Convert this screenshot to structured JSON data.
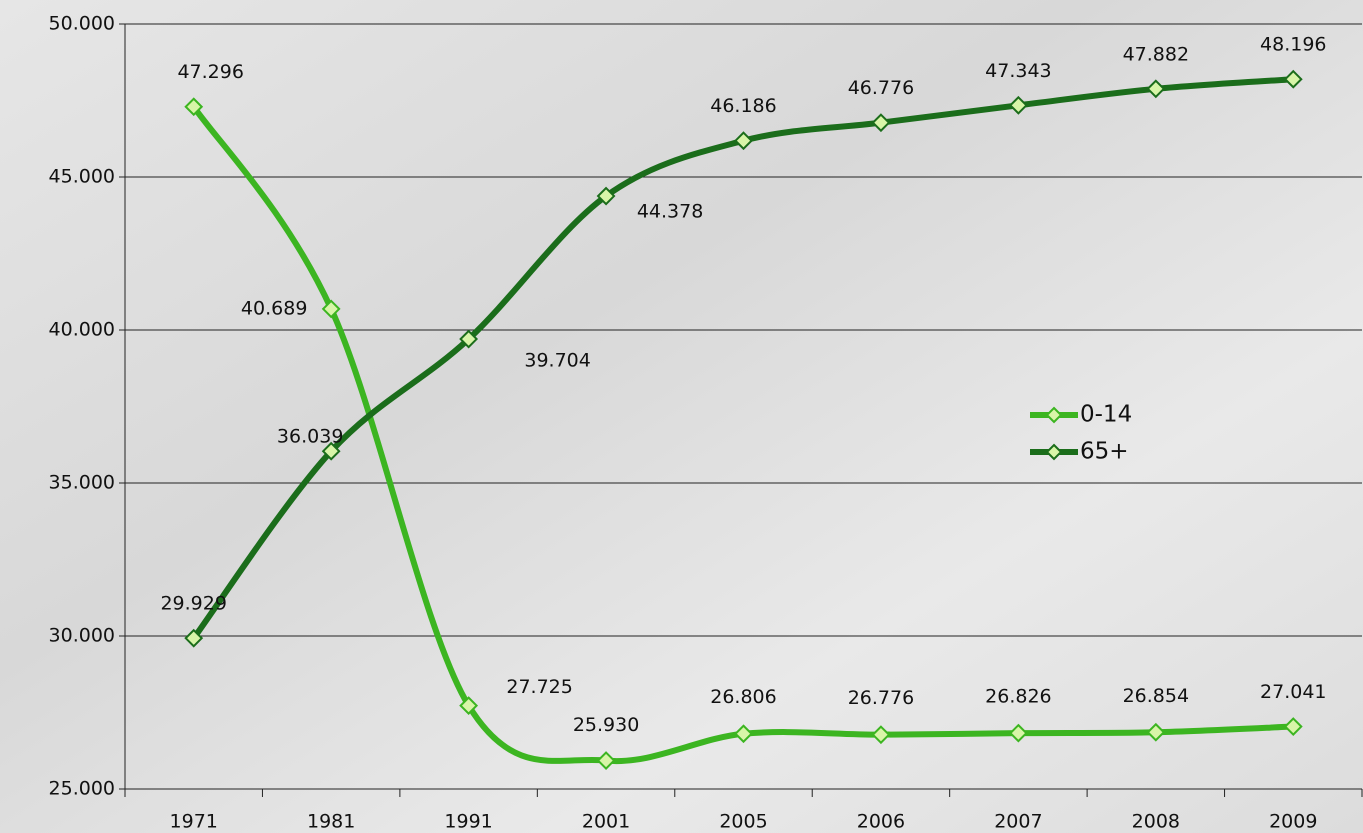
{
  "chart_data": {
    "type": "line",
    "categories": [
      "1971",
      "1981",
      "1991",
      "2001",
      "2005",
      "2006",
      "2007",
      "2008",
      "2009"
    ],
    "series": [
      {
        "name": "0-14",
        "color": "#3cb521",
        "values": [
          47296,
          40689,
          27725,
          25930,
          26806,
          26776,
          26826,
          26854,
          27041
        ],
        "value_labels": [
          "47.296",
          "40.689",
          "27.725",
          "25.930",
          "26.806",
          "26.776",
          "26.826",
          "26.854",
          "27.041"
        ]
      },
      {
        "name": "65+",
        "color": "#1b6d1b",
        "values": [
          29929,
          36039,
          39704,
          44378,
          46186,
          46776,
          47343,
          47882,
          48196
        ],
        "value_labels": [
          "29.929",
          "36.039",
          "39.704",
          "44.378",
          "46.186",
          "46.776",
          "47.343",
          "47.882",
          "48.196"
        ]
      }
    ],
    "ylim": [
      25000,
      50000
    ],
    "yticks": [
      {
        "value": 25000,
        "label": "25.000"
      },
      {
        "value": 30000,
        "label": "30.000"
      },
      {
        "value": 35000,
        "label": "35.000"
      },
      {
        "value": 40000,
        "label": "40.000"
      },
      {
        "value": 45000,
        "label": "45.000"
      },
      {
        "value": 50000,
        "label": "50.000"
      }
    ],
    "grid": true,
    "smooth": true
  }
}
